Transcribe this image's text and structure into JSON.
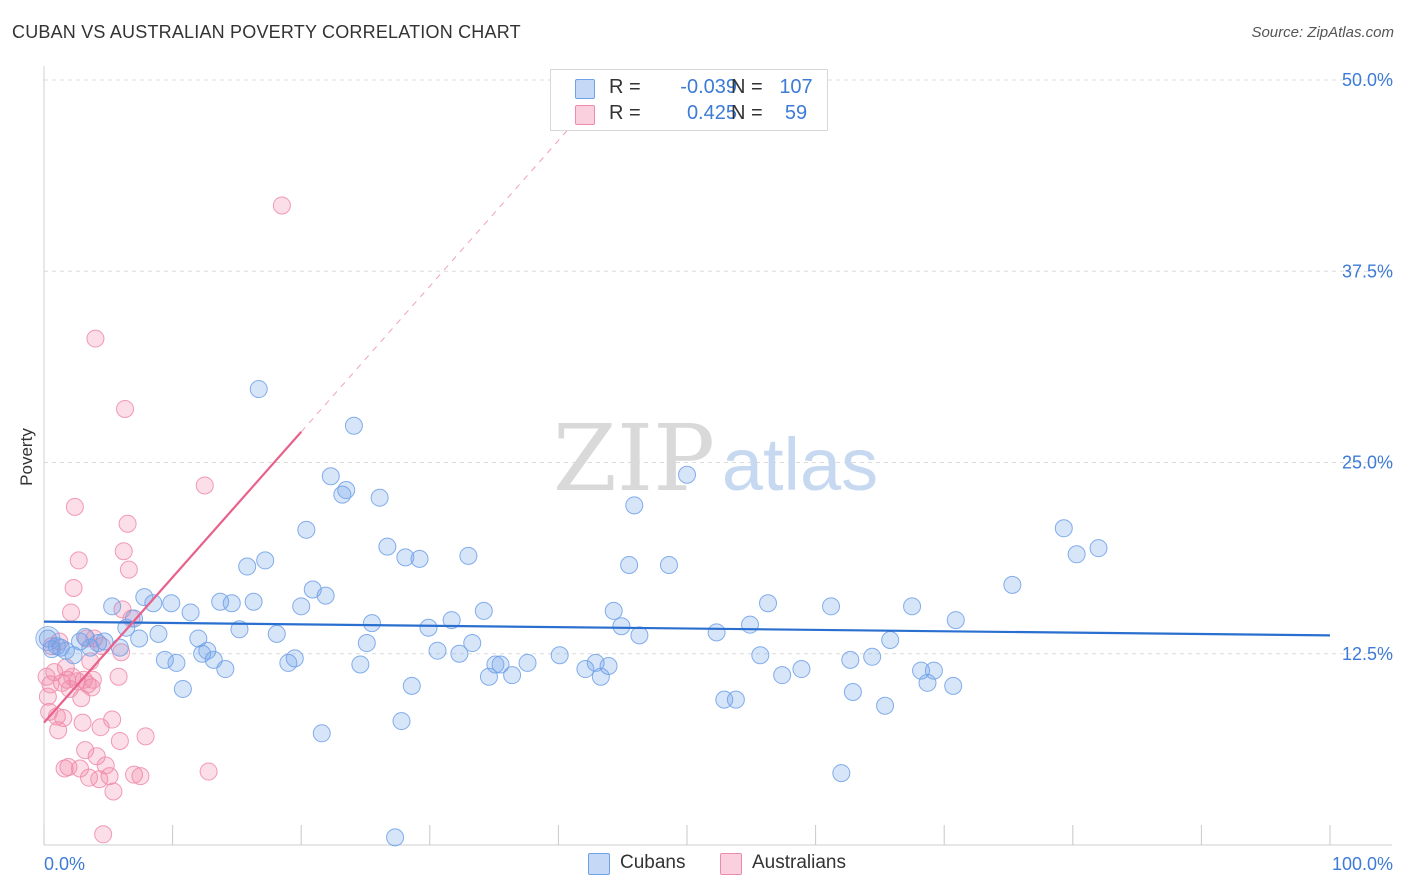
{
  "title": "CUBAN VS AUSTRALIAN POVERTY CORRELATION CHART",
  "source": "Source: ZipAtlas.com",
  "watermark": {
    "zip": "ZIP",
    "atlas": "atlas"
  },
  "colors": {
    "cubans": "#6fa0e8",
    "cubans_line": "#2a6fcf",
    "australians": "#f08aaa",
    "australians_line": "#e8618a",
    "tick_text": "#3d7bd6"
  },
  "legend": {
    "rows": [
      {
        "series": "Cubans",
        "r_label": "R =",
        "r_value": "-0.039",
        "n_label": "N =",
        "n_value": "107"
      },
      {
        "series": "Australians",
        "r_label": "R =",
        "r_value": "0.425",
        "n_label": "N =",
        "n_value": "59"
      }
    ]
  },
  "bottom_legend": [
    "Cubans",
    "Australians"
  ],
  "chart_data": {
    "type": "scatter",
    "title": "CUBAN VS AUSTRALIAN POVERTY CORRELATION CHART",
    "xlabel": "",
    "ylabel": "Poverty",
    "xlim": [
      0,
      100
    ],
    "ylim": [
      0,
      50
    ],
    "x_tick_labels": [
      "0.0%",
      "100.0%"
    ],
    "y_ticks": [
      12.5,
      25.0,
      37.5,
      50.0
    ],
    "y_tick_labels": [
      "12.5%",
      "25.0%",
      "37.5%",
      "50.0%"
    ],
    "grid": "horizontal dashed",
    "series": [
      {
        "name": "Cubans",
        "r": -0.039,
        "n": 107,
        "trend": {
          "x": [
            0,
            100
          ],
          "y": [
            14.6,
            13.7
          ]
        },
        "points": [
          [
            0.3,
            13.5
          ],
          [
            0.6,
            12.8
          ],
          [
            1.0,
            13.0
          ],
          [
            1.3,
            12.9
          ],
          [
            1.7,
            12.7
          ],
          [
            2.3,
            12.4
          ],
          [
            2.8,
            13.3
          ],
          [
            3.2,
            13.6
          ],
          [
            3.6,
            12.9
          ],
          [
            4.2,
            13.2
          ],
          [
            4.7,
            13.3
          ],
          [
            5.3,
            15.6
          ],
          [
            5.9,
            12.9
          ],
          [
            6.4,
            14.2
          ],
          [
            7.0,
            14.8
          ],
          [
            7.4,
            13.5
          ],
          [
            7.8,
            16.2
          ],
          [
            8.5,
            15.8
          ],
          [
            8.9,
            13.8
          ],
          [
            9.4,
            12.1
          ],
          [
            9.9,
            15.8
          ],
          [
            10.3,
            11.9
          ],
          [
            10.8,
            10.2
          ],
          [
            11.4,
            15.2
          ],
          [
            12.0,
            13.5
          ],
          [
            12.3,
            12.5
          ],
          [
            12.7,
            12.7
          ],
          [
            13.2,
            12.1
          ],
          [
            13.7,
            15.9
          ],
          [
            14.1,
            11.5
          ],
          [
            14.6,
            15.8
          ],
          [
            15.2,
            14.1
          ],
          [
            15.8,
            18.2
          ],
          [
            16.3,
            15.9
          ],
          [
            16.7,
            29.8
          ],
          [
            17.2,
            18.6
          ],
          [
            18.1,
            13.8
          ],
          [
            19.0,
            11.9
          ],
          [
            19.5,
            12.2
          ],
          [
            20.0,
            15.6
          ],
          [
            20.4,
            20.6
          ],
          [
            20.9,
            16.7
          ],
          [
            21.6,
            7.3
          ],
          [
            21.9,
            16.3
          ],
          [
            22.3,
            24.1
          ],
          [
            23.2,
            22.9
          ],
          [
            23.5,
            23.2
          ],
          [
            24.1,
            27.4
          ],
          [
            24.6,
            11.8
          ],
          [
            25.1,
            13.2
          ],
          [
            25.5,
            14.5
          ],
          [
            26.1,
            22.7
          ],
          [
            26.7,
            19.5
          ],
          [
            27.3,
            0.5
          ],
          [
            27.8,
            8.1
          ],
          [
            28.1,
            18.8
          ],
          [
            28.6,
            10.4
          ],
          [
            29.2,
            18.7
          ],
          [
            29.9,
            14.2
          ],
          [
            30.6,
            12.7
          ],
          [
            31.7,
            14.7
          ],
          [
            32.3,
            12.5
          ],
          [
            33.0,
            18.9
          ],
          [
            33.3,
            13.2
          ],
          [
            34.2,
            15.3
          ],
          [
            34.6,
            11.0
          ],
          [
            35.1,
            11.8
          ],
          [
            35.5,
            11.8
          ],
          [
            36.4,
            11.1
          ],
          [
            37.6,
            11.9
          ],
          [
            40.1,
            12.4
          ],
          [
            42.1,
            11.5
          ],
          [
            42.9,
            11.9
          ],
          [
            43.3,
            11.0
          ],
          [
            43.9,
            11.7
          ],
          [
            44.3,
            15.3
          ],
          [
            44.9,
            14.3
          ],
          [
            45.5,
            18.3
          ],
          [
            45.9,
            22.2
          ],
          [
            46.3,
            13.7
          ],
          [
            48.6,
            18.3
          ],
          [
            50.0,
            24.2
          ],
          [
            52.3,
            13.9
          ],
          [
            52.9,
            9.5
          ],
          [
            53.8,
            9.5
          ],
          [
            54.9,
            14.4
          ],
          [
            55.7,
            12.4
          ],
          [
            56.3,
            15.8
          ],
          [
            57.4,
            11.1
          ],
          [
            58.9,
            11.5
          ],
          [
            61.2,
            15.6
          ],
          [
            62.0,
            4.7
          ],
          [
            62.7,
            12.1
          ],
          [
            62.9,
            10.0
          ],
          [
            64.4,
            12.3
          ],
          [
            65.4,
            9.1
          ],
          [
            65.8,
            13.4
          ],
          [
            67.5,
            15.6
          ],
          [
            68.2,
            11.4
          ],
          [
            68.7,
            10.6
          ],
          [
            69.2,
            11.4
          ],
          [
            70.7,
            10.4
          ],
          [
            70.9,
            14.7
          ],
          [
            75.3,
            17.0
          ],
          [
            79.3,
            20.7
          ],
          [
            80.3,
            19.0
          ],
          [
            82.0,
            19.4
          ]
        ]
      },
      {
        "name": "Australians",
        "r": 0.425,
        "n": 59,
        "trend": {
          "x": [
            0,
            20
          ],
          "y": [
            8.0,
            27.0
          ]
        },
        "trend_extension": {
          "x": [
            20,
            41
          ],
          "y": [
            27.0,
            47.0
          ]
        },
        "points": [
          [
            0.2,
            11.0
          ],
          [
            0.3,
            9.7
          ],
          [
            0.4,
            8.7
          ],
          [
            0.5,
            10.5
          ],
          [
            0.6,
            13.0
          ],
          [
            0.8,
            11.3
          ],
          [
            1.0,
            8.4
          ],
          [
            1.1,
            7.5
          ],
          [
            1.2,
            13.3
          ],
          [
            1.4,
            10.6
          ],
          [
            1.5,
            8.3
          ],
          [
            1.6,
            5.0
          ],
          [
            1.7,
            11.6
          ],
          [
            1.8,
            10.8
          ],
          [
            1.9,
            5.1
          ],
          [
            2.0,
            10.2
          ],
          [
            2.1,
            15.2
          ],
          [
            2.2,
            11.0
          ],
          [
            2.3,
            16.8
          ],
          [
            2.4,
            22.1
          ],
          [
            2.6,
            10.7
          ],
          [
            2.7,
            18.6
          ],
          [
            2.8,
            5.0
          ],
          [
            2.9,
            9.6
          ],
          [
            3.0,
            8.0
          ],
          [
            3.1,
            10.8
          ],
          [
            3.2,
            6.2
          ],
          [
            3.3,
            13.5
          ],
          [
            3.4,
            10.5
          ],
          [
            3.5,
            4.4
          ],
          [
            3.6,
            12.0
          ],
          [
            3.7,
            10.3
          ],
          [
            3.8,
            10.8
          ],
          [
            3.9,
            13.5
          ],
          [
            4.0,
            33.1
          ],
          [
            4.1,
            5.8
          ],
          [
            4.3,
            4.3
          ],
          [
            4.4,
            7.7
          ],
          [
            4.6,
            0.7
          ],
          [
            4.8,
            5.2
          ],
          [
            5.1,
            4.5
          ],
          [
            5.3,
            8.2
          ],
          [
            5.4,
            3.5
          ],
          [
            5.8,
            11.0
          ],
          [
            5.9,
            6.8
          ],
          [
            6.1,
            15.4
          ],
          [
            6.2,
            19.2
          ],
          [
            6.3,
            28.5
          ],
          [
            6.5,
            21.0
          ],
          [
            6.6,
            18.0
          ],
          [
            6.8,
            14.8
          ],
          [
            7.0,
            4.6
          ],
          [
            7.5,
            4.5
          ],
          [
            7.9,
            7.1
          ],
          [
            12.5,
            23.5
          ],
          [
            12.8,
            4.8
          ],
          [
            18.5,
            41.8
          ],
          [
            6.0,
            12.6
          ],
          [
            4.5,
            13.0
          ]
        ]
      }
    ]
  }
}
